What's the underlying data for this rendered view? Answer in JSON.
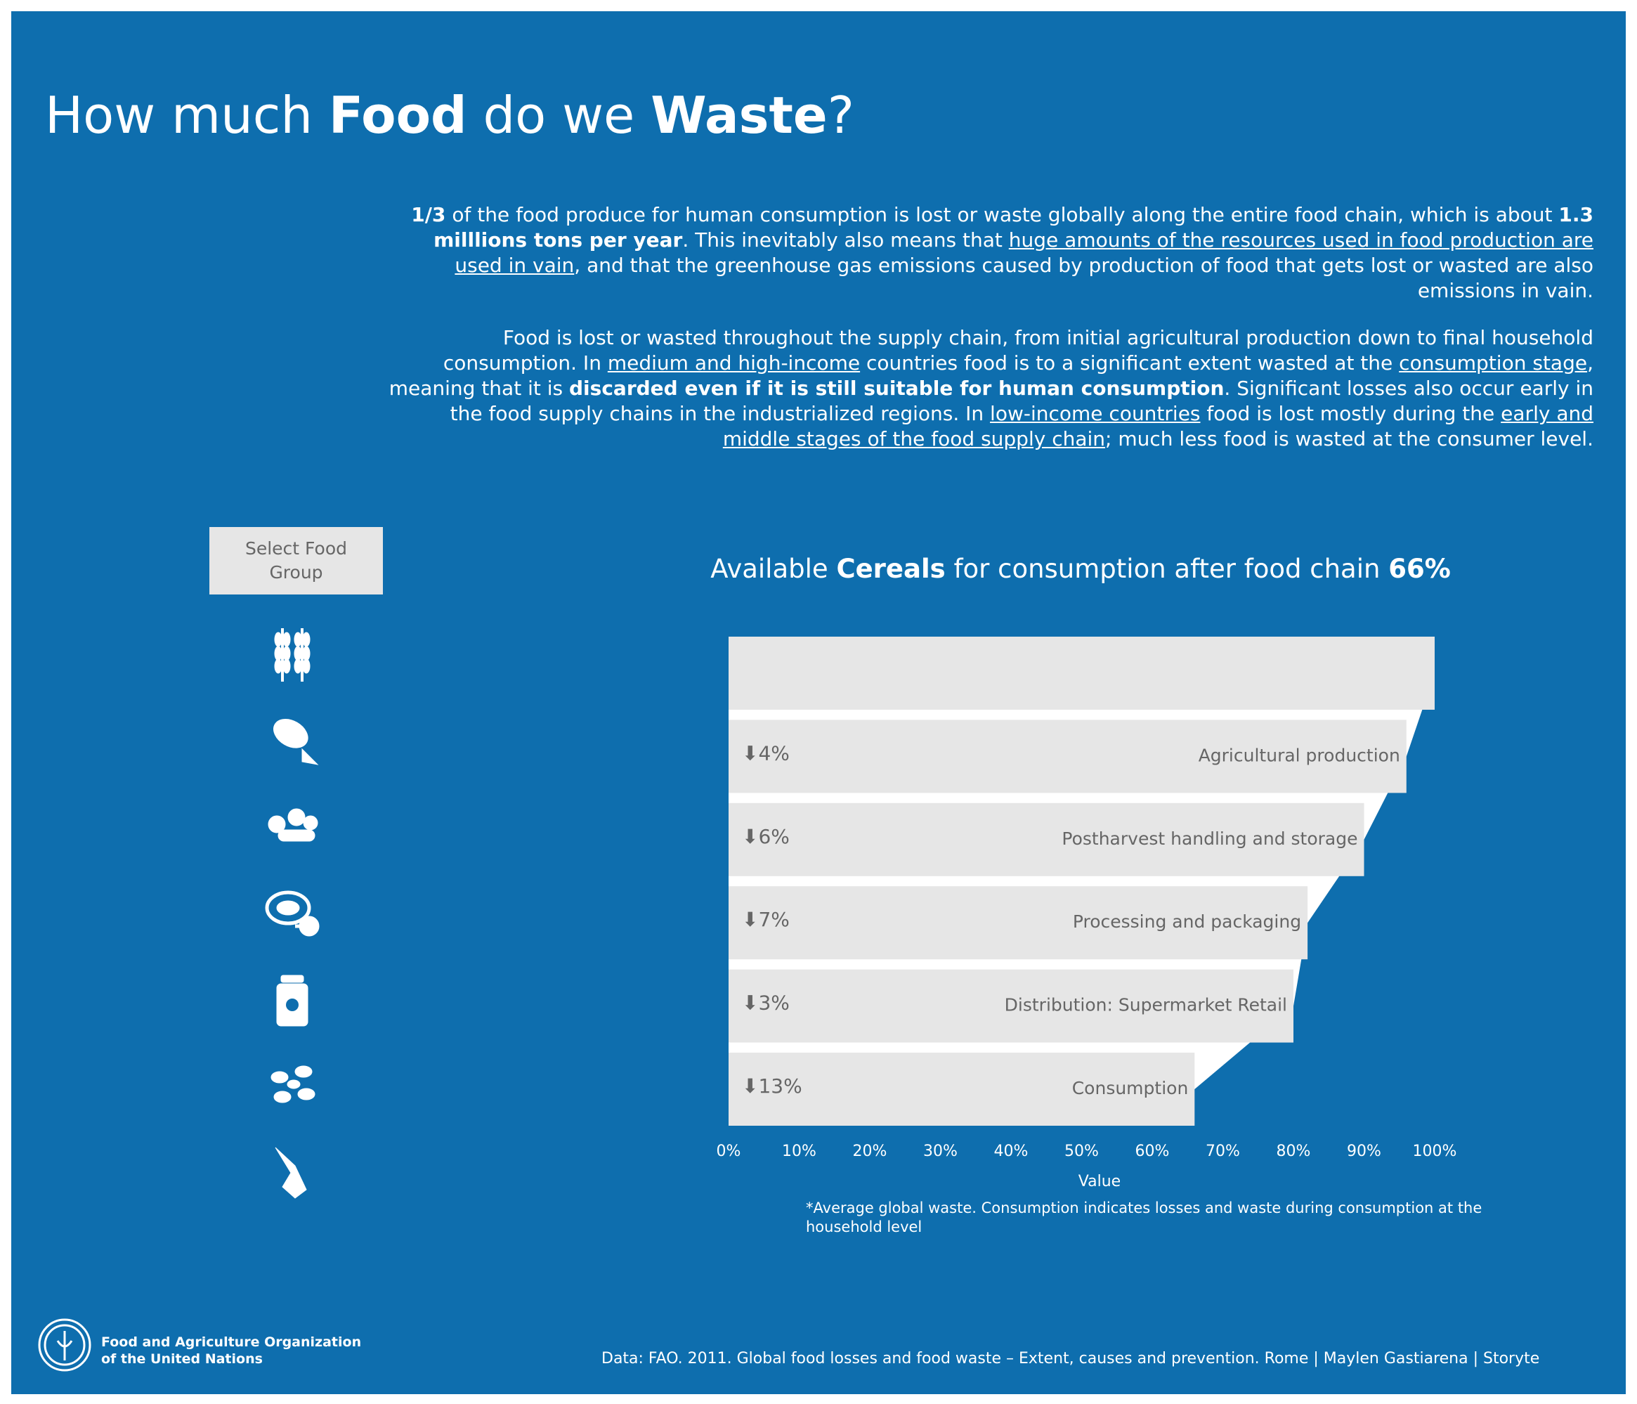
{
  "header": {
    "title": [
      "How much ",
      "Food",
      " do we ",
      "Waste",
      "?"
    ]
  },
  "intro": {
    "paragraphs": [
      [
        "1/3",
        " of the food produce for human consumption is lost or waste globally along the entire food chain, which is about ",
        "1.3 milllions tons per year",
        ". This inevitably also means that ",
        "huge amounts of the resources used in food production are used in vain",
        ", and that the greenhouse gas emissions caused by production of food that gets lost or wasted are also emissions in vain."
      ],
      [
        "Food is lost or wasted throughout the supply chain, from initial agricultural production down to final household consumption. In ",
        "medium and high-income",
        " countries food is to a significant extent wasted at the ",
        "consumption stage",
        ", meaning that it is ",
        "discarded even if it is still suitable for human consumption",
        ". Significant losses also occur early in the food supply chains in the industrialized regions. In ",
        "low-income countries",
        " food is lost mostly during the ",
        "early and middle stages of the food supply chain",
        "; much less food is wasted at the consumer level."
      ]
    ]
  },
  "selector": {
    "label": "Select Food Group"
  },
  "chart_data": {
    "type": "bar",
    "orientation": "horizontal",
    "title": [
      "Available ",
      "Cereals",
      " for consumption after food chain ",
      "66%"
    ],
    "categories": [
      null,
      "Agricultural production",
      "Postharvest handling and storage",
      "Processing and packaging",
      "Distribution: Supermarket Retail",
      "Consumption"
    ],
    "values": [
      100,
      96,
      90,
      82,
      80,
      66
    ],
    "drop_labels": [
      null,
      "⬇4%",
      "⬇6%",
      "⬇7%",
      "⬇3%",
      "⬇13%"
    ],
    "color": "#e6e6e6",
    "xlim": [
      0,
      100
    ],
    "xticks": [
      {
        "value": 0,
        "label": "0%"
      },
      {
        "value": 10,
        "label": "10%"
      },
      {
        "value": 20,
        "label": "20%"
      },
      {
        "value": 30,
        "label": "30%"
      },
      {
        "value": 40,
        "label": "40%"
      },
      {
        "value": 50,
        "label": "50%"
      },
      {
        "value": 60,
        "label": "60%"
      },
      {
        "value": 70,
        "label": "70%"
      },
      {
        "value": 80,
        "label": "80%"
      },
      {
        "value": 90,
        "label": "90%"
      },
      {
        "value": 100,
        "label": "100%"
      }
    ],
    "x_label": "Value",
    "note": "*Average global waste. Consumption indicates losses and waste during consumption at the household level"
  },
  "footer": {
    "org": [
      "Food and Agriculture Organization",
      "of the United Nations"
    ],
    "source": "Data: FAO. 2011. Global food losses and food waste – Extent, causes and prevention. Rome | Maylen Gastiarena | Storyte"
  }
}
